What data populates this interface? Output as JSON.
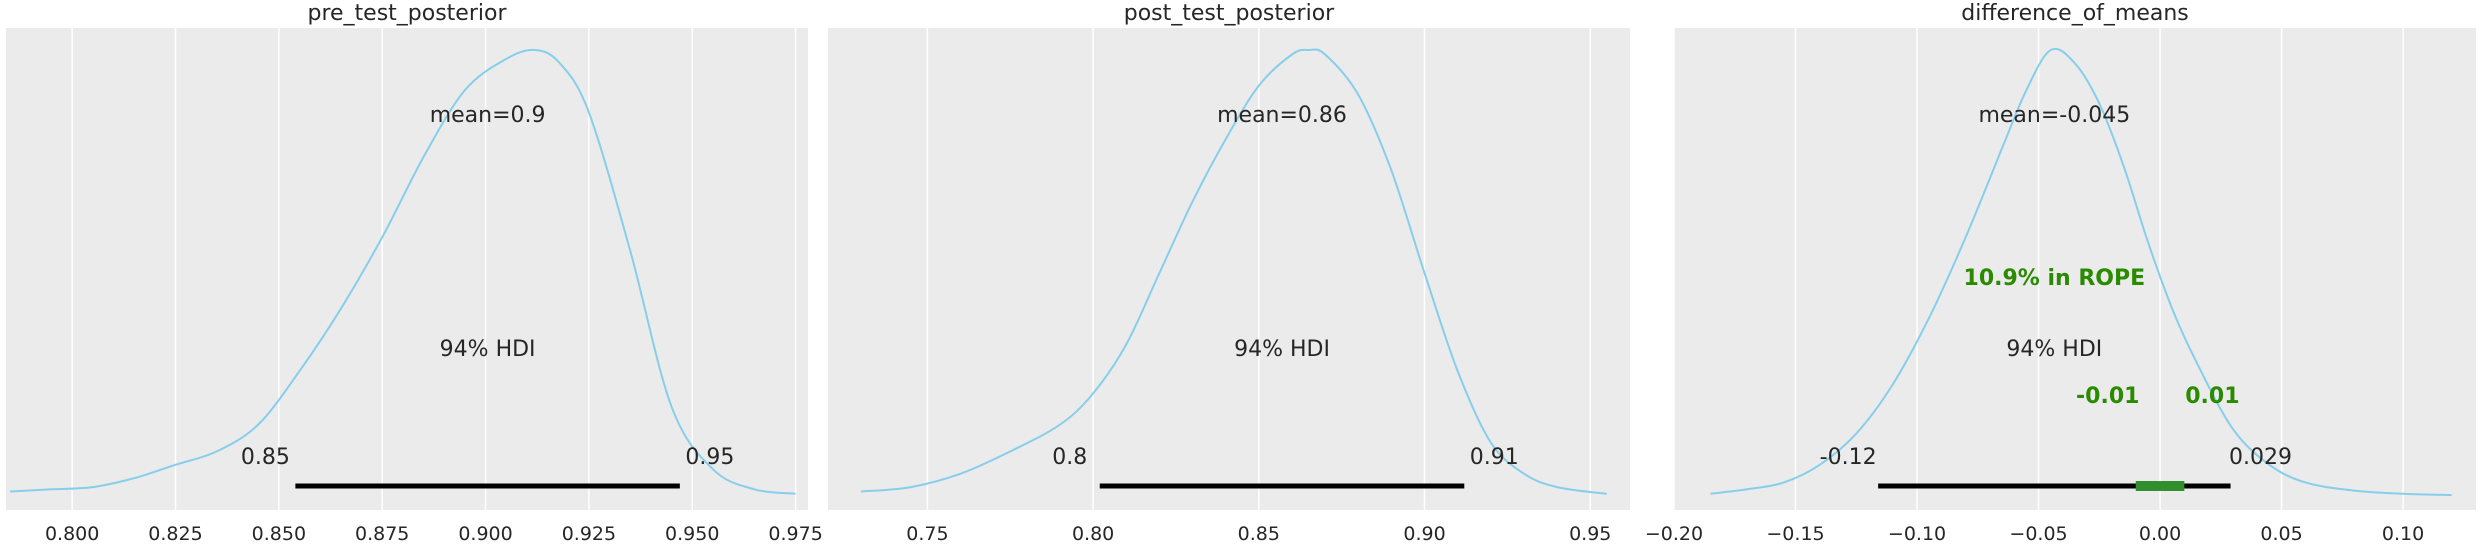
{
  "style": {
    "panel_bg": "#ebebeb",
    "grid_color": "#ffffff",
    "curve_color": "#87ceeb",
    "hdi_color": "#000000",
    "rope_color": "#2a8a00",
    "rope_band_color": "#328f2d",
    "text_color": "#262626"
  },
  "chart_data": [
    {
      "type": "area",
      "title": "pre_test_posterior",
      "xlim": [
        0.784,
        0.978
      ],
      "x_ticks": [
        0.8,
        0.825,
        0.85,
        0.875,
        0.9,
        0.925,
        0.95,
        0.975
      ],
      "x_tick_labels": [
        "0.800",
        "0.825",
        "0.850",
        "0.875",
        "0.900",
        "0.925",
        "0.950",
        "0.975"
      ],
      "grid": true,
      "legend": "none",
      "mean_label": "mean=0.9",
      "hdi_label": "94% HDI",
      "hdi": [
        0.854,
        0.947
      ],
      "hdi_low_label": "0.85",
      "hdi_high_label": "0.95",
      "density": {
        "x": [
          0.785,
          0.795,
          0.805,
          0.815,
          0.825,
          0.835,
          0.845,
          0.855,
          0.865,
          0.875,
          0.885,
          0.895,
          0.905,
          0.912,
          0.918,
          0.925,
          0.935,
          0.945,
          0.955,
          0.965,
          0.975
        ],
        "y": [
          0.01,
          0.015,
          0.02,
          0.04,
          0.07,
          0.1,
          0.16,
          0.28,
          0.42,
          0.58,
          0.76,
          0.91,
          0.98,
          1.0,
          0.97,
          0.86,
          0.55,
          0.2,
          0.06,
          0.015,
          0.005
        ]
      }
    },
    {
      "type": "area",
      "title": "post_test_posterior",
      "xlim": [
        0.72,
        0.962
      ],
      "x_ticks": [
        0.75,
        0.8,
        0.85,
        0.9,
        0.95
      ],
      "x_tick_labels": [
        "0.75",
        "0.80",
        "0.85",
        "0.90",
        "0.95"
      ],
      "grid": true,
      "legend": "none",
      "mean_label": "mean=0.86",
      "hdi_label": "94% HDI",
      "hdi": [
        0.802,
        0.912
      ],
      "hdi_low_label": "0.8",
      "hdi_high_label": "0.91",
      "density": {
        "x": [
          0.73,
          0.745,
          0.76,
          0.775,
          0.79,
          0.8,
          0.81,
          0.82,
          0.83,
          0.84,
          0.85,
          0.86,
          0.865,
          0.87,
          0.88,
          0.89,
          0.9,
          0.91,
          0.92,
          0.93,
          0.94,
          0.955
        ],
        "y": [
          0.01,
          0.02,
          0.05,
          0.1,
          0.16,
          0.23,
          0.34,
          0.5,
          0.66,
          0.8,
          0.92,
          0.99,
          1.0,
          0.99,
          0.9,
          0.73,
          0.5,
          0.28,
          0.12,
          0.05,
          0.02,
          0.005
        ]
      }
    },
    {
      "type": "area",
      "title": "difference_of_means",
      "xlim": [
        -0.2,
        0.13
      ],
      "x_ticks": [
        -0.2,
        -0.15,
        -0.1,
        -0.05,
        0.0,
        0.05,
        0.1
      ],
      "x_tick_labels": [
        "−0.20",
        "−0.15",
        "−0.10",
        "−0.05",
        "0.00",
        "0.05",
        "0.10"
      ],
      "grid": true,
      "legend": "none",
      "mean_label": "mean=-0.045",
      "hdi_label": "94% HDI",
      "hdi": [
        -0.116,
        0.029
      ],
      "hdi_low_label": "-0.12",
      "hdi_high_label": "0.029",
      "rope": [
        -0.01,
        0.01
      ],
      "rope_label": "10.9% in ROPE",
      "rope_low_label": "-0.01",
      "rope_high_label": "0.01",
      "density": {
        "x": [
          -0.185,
          -0.17,
          -0.155,
          -0.14,
          -0.125,
          -0.11,
          -0.095,
          -0.08,
          -0.065,
          -0.055,
          -0.045,
          -0.035,
          -0.025,
          -0.015,
          -0.005,
          0.005,
          0.015,
          0.03,
          0.045,
          0.06,
          0.08,
          0.1,
          0.12
        ],
        "y": [
          0.005,
          0.015,
          0.03,
          0.07,
          0.14,
          0.25,
          0.4,
          0.58,
          0.78,
          0.91,
          1.0,
          0.97,
          0.88,
          0.74,
          0.57,
          0.42,
          0.3,
          0.15,
          0.07,
          0.03,
          0.012,
          0.005,
          0.002
        ]
      }
    }
  ]
}
